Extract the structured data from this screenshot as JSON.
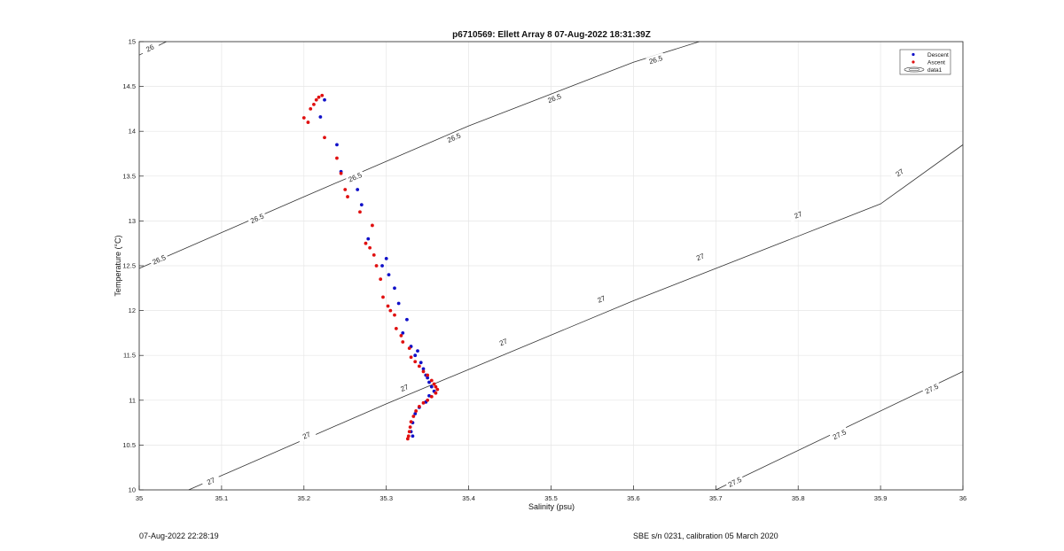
{
  "footer": {
    "timestamp": "07-Aug-2022 22:28:19",
    "calibration": "SBE s/n 0231, calibration 05 March 2020"
  },
  "chart_data": {
    "type": "scatter",
    "title": "p6710569: Ellett Array 8 07-Aug-2022 18:31:39Z",
    "xlabel": "Salinity (psu)",
    "ylabel": "Temperature (°C)",
    "xlim": [
      35,
      36
    ],
    "ylim": [
      10,
      15
    ],
    "xticks": [
      "35",
      "35.1",
      "35.2",
      "35.3",
      "35.4",
      "35.5",
      "35.6",
      "35.7",
      "35.8",
      "35.9",
      "36"
    ],
    "yticks": [
      "10",
      "10.5",
      "11",
      "11.5",
      "12",
      "12.5",
      "13",
      "13.5",
      "14",
      "14.5",
      "15"
    ],
    "grid": true,
    "legend": {
      "placement": "top-right",
      "entries": [
        "Descent",
        "Ascent",
        "data1"
      ]
    },
    "colors": {
      "descent": "#1010c8",
      "ascent": "#e01010",
      "contour": "#333333",
      "grid": "#e6e6e6"
    },
    "contours": [
      {
        "level": "26",
        "line": [
          [
            35.0,
            14.85
          ],
          [
            35.033,
            15.0
          ]
        ],
        "labels": [
          {
            "x": 35.013,
            "y": 14.93
          }
        ]
      },
      {
        "level": "26.5",
        "line": [
          [
            35.0,
            12.47
          ],
          [
            35.2,
            13.27
          ],
          [
            35.4,
            14.06
          ],
          [
            35.6,
            14.77
          ],
          [
            35.68,
            15.0
          ]
        ],
        "labels": [
          {
            "x": 35.024,
            "y": 12.57
          },
          {
            "x": 35.143,
            "y": 13.03
          },
          {
            "x": 35.262,
            "y": 13.49
          },
          {
            "x": 35.382,
            "y": 13.93
          },
          {
            "x": 35.504,
            "y": 14.37
          },
          {
            "x": 35.627,
            "y": 14.8
          }
        ]
      },
      {
        "level": "27",
        "line": [
          [
            35.06,
            10.0
          ],
          [
            35.3,
            10.96
          ],
          [
            35.6,
            12.11
          ],
          [
            35.9,
            13.19
          ],
          [
            36.0,
            13.85
          ]
        ],
        "labels": [
          {
            "x": 35.087,
            "y": 10.1
          },
          {
            "x": 35.203,
            "y": 10.61
          },
          {
            "x": 35.322,
            "y": 11.14
          },
          {
            "x": 35.442,
            "y": 11.65
          },
          {
            "x": 35.561,
            "y": 12.13
          },
          {
            "x": 35.681,
            "y": 12.6
          },
          {
            "x": 35.8,
            "y": 13.07
          },
          {
            "x": 35.923,
            "y": 13.54
          }
        ]
      },
      {
        "level": "27.5",
        "line": [
          [
            35.7,
            10.0
          ],
          [
            36.0,
            11.32
          ]
        ],
        "labels": [
          {
            "x": 35.723,
            "y": 10.09
          },
          {
            "x": 35.85,
            "y": 10.62
          },
          {
            "x": 35.962,
            "y": 11.13
          }
        ]
      }
    ],
    "series": [
      {
        "name": "Descent",
        "points": [
          [
            35.225,
            14.35
          ],
          [
            35.22,
            14.16
          ],
          [
            35.24,
            13.85
          ],
          [
            35.245,
            13.55
          ],
          [
            35.265,
            13.35
          ],
          [
            35.27,
            13.18
          ],
          [
            35.278,
            12.8
          ],
          [
            35.3,
            12.58
          ],
          [
            35.295,
            12.5
          ],
          [
            35.303,
            12.4
          ],
          [
            35.31,
            12.25
          ],
          [
            35.315,
            12.08
          ],
          [
            35.325,
            11.9
          ],
          [
            35.32,
            11.75
          ],
          [
            35.33,
            11.6
          ],
          [
            35.335,
            11.5
          ],
          [
            35.338,
            11.55
          ],
          [
            35.342,
            11.42
          ],
          [
            35.345,
            11.35
          ],
          [
            35.348,
            11.28
          ],
          [
            35.35,
            11.25
          ],
          [
            35.352,
            11.2
          ],
          [
            35.355,
            11.15
          ],
          [
            35.358,
            11.1
          ],
          [
            35.352,
            11.05
          ],
          [
            35.348,
            10.98
          ],
          [
            35.34,
            10.92
          ],
          [
            35.335,
            10.85
          ],
          [
            35.332,
            10.75
          ],
          [
            35.33,
            10.65
          ],
          [
            35.332,
            10.6
          ]
        ]
      },
      {
        "name": "Ascent",
        "points": [
          [
            35.2,
            14.15
          ],
          [
            35.205,
            14.1
          ],
          [
            35.208,
            14.25
          ],
          [
            35.212,
            14.3
          ],
          [
            35.215,
            14.35
          ],
          [
            35.218,
            14.38
          ],
          [
            35.222,
            14.4
          ],
          [
            35.225,
            13.93
          ],
          [
            35.24,
            13.7
          ],
          [
            35.245,
            13.53
          ],
          [
            35.25,
            13.35
          ],
          [
            35.253,
            13.27
          ],
          [
            35.268,
            13.1
          ],
          [
            35.283,
            12.95
          ],
          [
            35.275,
            12.75
          ],
          [
            35.28,
            12.7
          ],
          [
            35.285,
            12.62
          ],
          [
            35.288,
            12.5
          ],
          [
            35.293,
            12.35
          ],
          [
            35.296,
            12.15
          ],
          [
            35.302,
            12.05
          ],
          [
            35.305,
            12.0
          ],
          [
            35.31,
            11.95
          ],
          [
            35.312,
            11.8
          ],
          [
            35.318,
            11.72
          ],
          [
            35.32,
            11.65
          ],
          [
            35.328,
            11.58
          ],
          [
            35.33,
            11.48
          ],
          [
            35.335,
            11.43
          ],
          [
            35.34,
            11.38
          ],
          [
            35.345,
            11.32
          ],
          [
            35.35,
            11.28
          ],
          [
            35.355,
            11.22
          ],
          [
            35.358,
            11.18
          ],
          [
            35.36,
            11.15
          ],
          [
            35.362,
            11.12
          ],
          [
            35.36,
            11.08
          ],
          [
            35.355,
            11.04
          ],
          [
            35.35,
            11.0
          ],
          [
            35.345,
            10.97
          ],
          [
            35.34,
            10.93
          ],
          [
            35.336,
            10.88
          ],
          [
            35.333,
            10.82
          ],
          [
            35.33,
            10.76
          ],
          [
            35.329,
            10.7
          ],
          [
            35.328,
            10.65
          ],
          [
            35.327,
            10.6
          ],
          [
            35.326,
            10.57
          ]
        ]
      }
    ]
  }
}
